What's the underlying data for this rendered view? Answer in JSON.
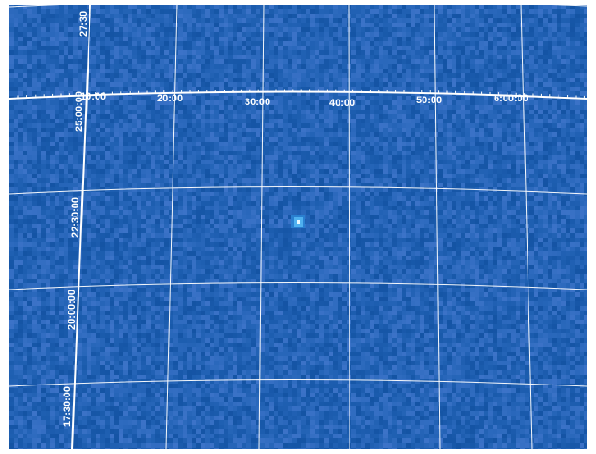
{
  "image": {
    "description_kind": "astronomical sky map",
    "background_color": "#1f3a8a",
    "grid_color": "#ffffff",
    "source_color": "#7fd0ff"
  },
  "ra_labels": [
    "10:00",
    "20:00",
    "30:00",
    "40:00",
    "50:00",
    "6:00:00"
  ],
  "dec_labels": [
    "27:30",
    "25:00:00",
    "22:30:00",
    "20:00:00",
    "17:30:00"
  ]
}
